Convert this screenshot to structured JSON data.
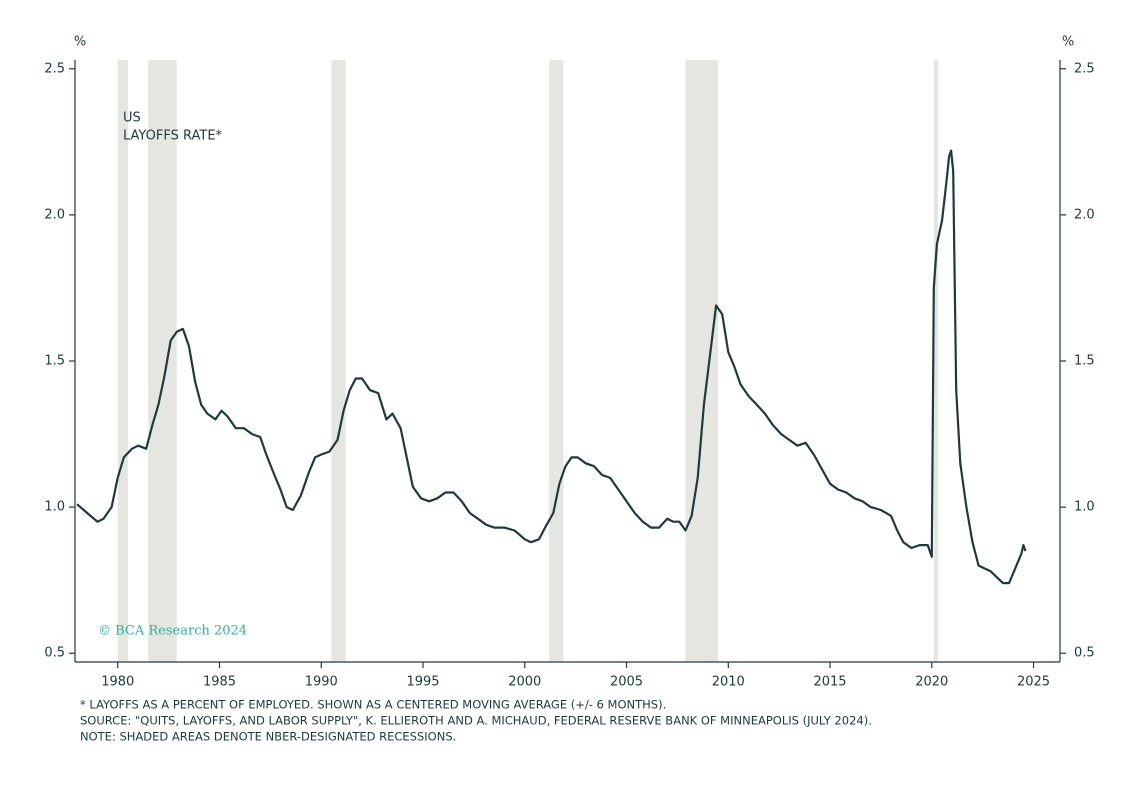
{
  "chart_data": {
    "type": "line",
    "title_lines": [
      "US",
      "LAYOFFS RATE*"
    ],
    "y_label": "%",
    "watermark": "© BCA Research 2024",
    "notes": [
      "* LAYOFFS AS A PERCENT OF EMPLOYED. SHOWN AS A CENTERED MOVING AVERAGE (+/- 6 MONTHS).",
      "SOURCE: \"QUITS, LAYOFFS, AND LABOR SUPPLY\", K. ELLIEROTH AND A. MICHAUD, FEDERAL RESERVE BANK OF MINNEAPOLIS (JULY 2024).",
      "NOTE: SHADED AREAS DENOTE NBER-DESIGNATED RECESSIONS."
    ],
    "xlim": [
      1977.9,
      2026.3
    ],
    "xticks": [
      1980,
      1985,
      1990,
      1995,
      2000,
      2005,
      2010,
      2015,
      2020,
      2025
    ],
    "ylim": [
      0.47,
      2.53
    ],
    "yticks": [
      0.5,
      {
        "value": 1,
        "label": "1.0"
      },
      1.5,
      {
        "value": 2,
        "label": "2.0"
      },
      2.5
    ],
    "y2lim": [
      0.47,
      2.53
    ],
    "y2ticks": [
      0.5,
      {
        "value": 1,
        "label": "1.0"
      },
      1.5,
      {
        "value": 2,
        "label": "2.0"
      },
      2.5
    ],
    "recession_color": "#e6e6e0",
    "recessions": [
      [
        1980.0,
        1980.5
      ],
      [
        1981.5,
        1982.9
      ],
      [
        1990.5,
        1991.2
      ],
      [
        2001.2,
        2001.9
      ],
      [
        2007.9,
        2009.5
      ],
      [
        2020.1,
        2020.3
      ]
    ],
    "series": [
      {
        "name": "US LAYOFFS RATE",
        "color": "#1d3b3f",
        "x": [
          1978.0,
          1978.5,
          1979.0,
          1979.3,
          1979.7,
          1980.0,
          1980.3,
          1980.7,
          1981.0,
          1981.4,
          1981.7,
          1982.0,
          1982.3,
          1982.6,
          1982.9,
          1983.2,
          1983.5,
          1983.8,
          1984.1,
          1984.4,
          1984.8,
          1985.1,
          1985.4,
          1985.8,
          1986.2,
          1986.6,
          1987.0,
          1987.3,
          1987.7,
          1988.0,
          1988.3,
          1988.6,
          1989.0,
          1989.4,
          1989.7,
          1990.0,
          1990.4,
          1990.8,
          1991.1,
          1991.4,
          1991.7,
          1992.0,
          1992.4,
          1992.8,
          1993.2,
          1993.5,
          1993.9,
          1994.2,
          1994.5,
          1994.9,
          1995.3,
          1995.7,
          1996.1,
          1996.5,
          1996.9,
          1997.3,
          1997.7,
          1998.1,
          1998.5,
          1999.0,
          1999.5,
          2000.0,
          2000.3,
          2000.7,
          2001.0,
          2001.4,
          2001.7,
          2002.0,
          2002.3,
          2002.6,
          2003.0,
          2003.4,
          2003.8,
          2004.2,
          2004.6,
          2005.0,
          2005.4,
          2005.8,
          2006.2,
          2006.6,
          2007.0,
          2007.3,
          2007.6,
          2007.9,
          2008.2,
          2008.5,
          2008.8,
          2009.1,
          2009.4,
          2009.7,
          2010.0,
          2010.3,
          2010.6,
          2011.0,
          2011.4,
          2011.8,
          2012.2,
          2012.6,
          2013.0,
          2013.4,
          2013.8,
          2014.2,
          2014.6,
          2015.0,
          2015.4,
          2015.8,
          2016.2,
          2016.6,
          2017.0,
          2017.5,
          2018.0,
          2018.3,
          2018.6,
          2019.0,
          2019.4,
          2019.8,
          2020.0,
          2020.1,
          2020.25,
          2020.5,
          2020.7,
          2020.85,
          2020.95,
          2021.05,
          2021.2,
          2021.4,
          2021.7,
          2022.0,
          2022.3,
          2022.6,
          2022.9,
          2023.2,
          2023.5,
          2023.8,
          2024.1,
          2024.4,
          2024.5,
          2024.6
        ],
        "values": [
          1.01,
          0.98,
          0.95,
          0.96,
          1.0,
          1.1,
          1.17,
          1.2,
          1.21,
          1.2,
          1.28,
          1.35,
          1.45,
          1.57,
          1.6,
          1.61,
          1.55,
          1.43,
          1.35,
          1.32,
          1.3,
          1.33,
          1.31,
          1.27,
          1.27,
          1.25,
          1.24,
          1.18,
          1.11,
          1.06,
          1.0,
          0.99,
          1.04,
          1.12,
          1.17,
          1.18,
          1.19,
          1.23,
          1.33,
          1.4,
          1.44,
          1.44,
          1.4,
          1.39,
          1.3,
          1.32,
          1.27,
          1.17,
          1.07,
          1.03,
          1.02,
          1.03,
          1.05,
          1.05,
          1.02,
          0.98,
          0.96,
          0.94,
          0.93,
          0.93,
          0.92,
          0.89,
          0.88,
          0.89,
          0.93,
          0.98,
          1.08,
          1.14,
          1.17,
          1.17,
          1.15,
          1.14,
          1.11,
          1.1,
          1.06,
          1.02,
          0.98,
          0.95,
          0.93,
          0.93,
          0.96,
          0.95,
          0.95,
          0.92,
          0.97,
          1.1,
          1.35,
          1.52,
          1.69,
          1.66,
          1.53,
          1.48,
          1.42,
          1.38,
          1.35,
          1.32,
          1.28,
          1.25,
          1.23,
          1.21,
          1.22,
          1.18,
          1.13,
          1.08,
          1.06,
          1.05,
          1.03,
          1.02,
          1.0,
          0.99,
          0.97,
          0.92,
          0.88,
          0.86,
          0.87,
          0.87,
          0.83,
          1.75,
          1.9,
          1.98,
          2.1,
          2.2,
          2.22,
          2.15,
          1.4,
          1.15,
          1.0,
          0.88,
          0.8,
          0.79,
          0.78,
          0.76,
          0.74,
          0.74,
          0.79,
          0.84,
          0.87,
          0.85
        ]
      }
    ]
  }
}
